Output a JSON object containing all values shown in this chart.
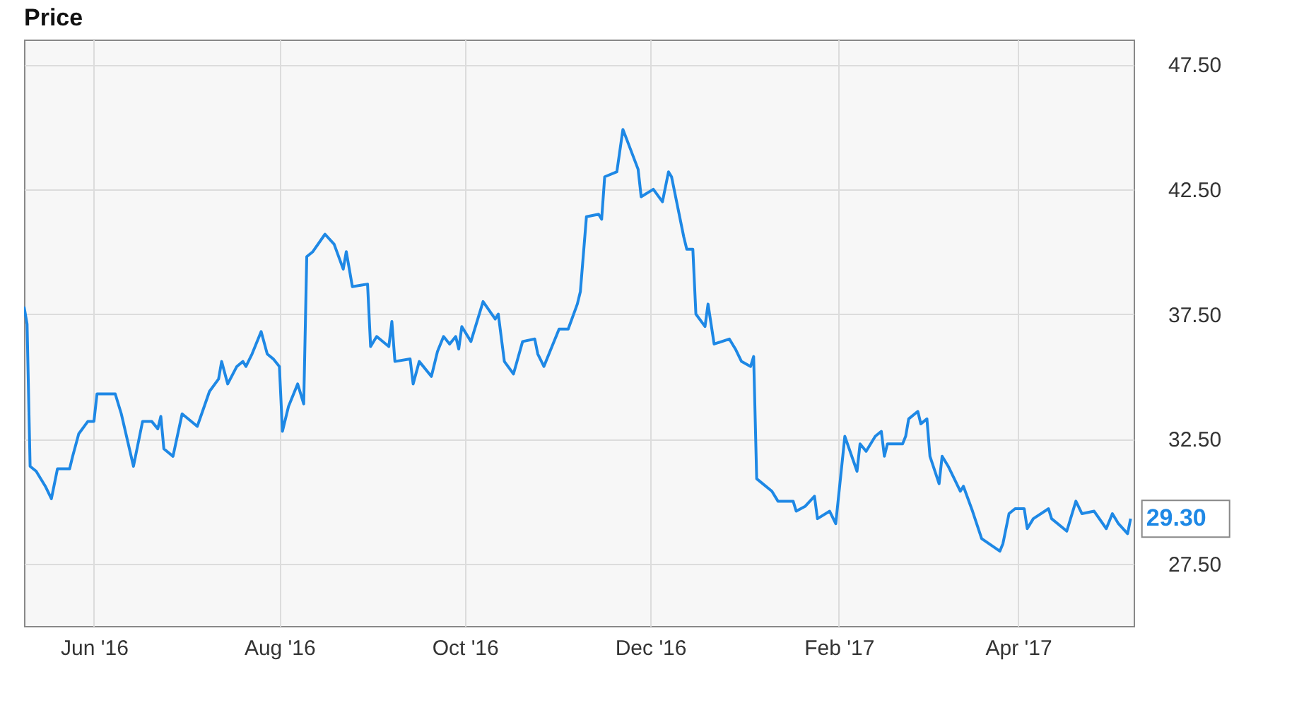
{
  "chart_data": {
    "type": "line",
    "title": "Price",
    "x": [
      "2016-05-09",
      "2016-05-10",
      "2016-05-11",
      "2016-05-13",
      "2016-05-16",
      "2016-05-18",
      "2016-05-20",
      "2016-05-24",
      "2016-05-25",
      "2016-05-27",
      "2016-05-30",
      "2016-06-01",
      "2016-06-02",
      "2016-06-08",
      "2016-06-10",
      "2016-06-14",
      "2016-06-17",
      "2016-06-20",
      "2016-06-22",
      "2016-06-23",
      "2016-06-24",
      "2016-06-27",
      "2016-06-30",
      "2016-07-05",
      "2016-07-07",
      "2016-07-09",
      "2016-07-12",
      "2016-07-13",
      "2016-07-15",
      "2016-07-18",
      "2016-07-20",
      "2016-07-21",
      "2016-07-23",
      "2016-07-26",
      "2016-07-28",
      "2016-07-30",
      "2016-08-01",
      "2016-08-02",
      "2016-08-04",
      "2016-08-07",
      "2016-08-09",
      "2016-08-10",
      "2016-08-12",
      "2016-08-16",
      "2016-08-19",
      "2016-08-22",
      "2016-08-23",
      "2016-08-25",
      "2016-08-30",
      "2016-08-31",
      "2016-09-02",
      "2016-09-06",
      "2016-09-07",
      "2016-09-08",
      "2016-09-13",
      "2016-09-14",
      "2016-09-16",
      "2016-09-20",
      "2016-09-22",
      "2016-09-24",
      "2016-09-26",
      "2016-09-28",
      "2016-09-29",
      "2016-09-30",
      "2016-10-03",
      "2016-10-07",
      "2016-10-11",
      "2016-10-12",
      "2016-10-14",
      "2016-10-17",
      "2016-10-20",
      "2016-10-24",
      "2016-10-25",
      "2016-10-27",
      "2016-11-01",
      "2016-11-04",
      "2016-11-07",
      "2016-11-08",
      "2016-11-10",
      "2016-11-14",
      "2016-11-15",
      "2016-11-16",
      "2016-11-20",
      "2016-11-22",
      "2016-11-27",
      "2016-11-28",
      "2016-12-02",
      "2016-12-05",
      "2016-12-07",
      "2016-12-08",
      "2016-12-12",
      "2016-12-13",
      "2016-12-15",
      "2016-12-16",
      "2016-12-19",
      "2016-12-20",
      "2016-12-22",
      "2016-12-27",
      "2016-12-29",
      "2016-12-31",
      "2017-01-03",
      "2017-01-04",
      "2017-01-05",
      "2017-01-10",
      "2017-01-12",
      "2017-01-17",
      "2017-01-18",
      "2017-01-21",
      "2017-01-24",
      "2017-01-25",
      "2017-01-29",
      "2017-01-31",
      "2017-02-03",
      "2017-02-07",
      "2017-02-08",
      "2017-02-10",
      "2017-02-13",
      "2017-02-15",
      "2017-02-16",
      "2017-02-17",
      "2017-02-22",
      "2017-02-23",
      "2017-02-24",
      "2017-02-27",
      "2017-02-28",
      "2017-03-02",
      "2017-03-03",
      "2017-03-06",
      "2017-03-07",
      "2017-03-09",
      "2017-03-13",
      "2017-03-14",
      "2017-03-17",
      "2017-03-20",
      "2017-03-26",
      "2017-03-27",
      "2017-03-29",
      "2017-03-31",
      "2017-04-03",
      "2017-04-04",
      "2017-04-06",
      "2017-04-11",
      "2017-04-12",
      "2017-04-17",
      "2017-04-20",
      "2017-04-22",
      "2017-04-26",
      "2017-04-30",
      "2017-05-02",
      "2017-05-04",
      "2017-05-07",
      "2017-05-08"
    ],
    "series": [
      {
        "color": "#1e88e5",
        "values": [
          37.8,
          37.1,
          31.4,
          31.2,
          30.6,
          30.1,
          31.3,
          31.3,
          31.8,
          32.7,
          33.2,
          33.2,
          34.3,
          34.3,
          33.5,
          31.4,
          33.2,
          33.2,
          32.9,
          33.4,
          32.1,
          31.8,
          33.5,
          33.0,
          33.7,
          34.4,
          34.9,
          35.6,
          34.7,
          35.4,
          35.6,
          35.4,
          35.9,
          36.8,
          35.9,
          35.7,
          35.4,
          32.8,
          33.8,
          34.7,
          33.9,
          39.8,
          40.0,
          40.7,
          40.3,
          39.3,
          40.0,
          38.6,
          38.7,
          36.2,
          36.6,
          36.2,
          37.2,
          35.6,
          35.7,
          34.7,
          35.6,
          35.0,
          36.0,
          36.6,
          36.3,
          36.6,
          36.1,
          37.0,
          36.4,
          38.0,
          37.3,
          37.5,
          35.6,
          35.1,
          36.4,
          36.5,
          35.9,
          35.4,
          36.9,
          36.9,
          37.9,
          38.4,
          41.4,
          41.5,
          41.3,
          43.0,
          43.2,
          44.9,
          43.3,
          42.2,
          42.5,
          42.0,
          43.2,
          43.0,
          40.6,
          40.1,
          40.1,
          37.5,
          37.0,
          37.9,
          36.3,
          36.5,
          36.1,
          35.6,
          35.4,
          35.8,
          30.9,
          30.4,
          30.0,
          30.0,
          29.6,
          29.8,
          30.2,
          29.3,
          29.6,
          29.1,
          32.6,
          31.2,
          32.3,
          32.0,
          32.6,
          32.8,
          31.8,
          32.3,
          32.3,
          32.6,
          33.3,
          33.6,
          33.1,
          33.3,
          31.8,
          30.7,
          31.8,
          31.4,
          30.4,
          30.6,
          29.6,
          28.5,
          28.0,
          28.3,
          29.5,
          29.7,
          29.7,
          28.9,
          29.3,
          29.7,
          29.3,
          28.8,
          30.0,
          29.5,
          29.6,
          28.9,
          29.5,
          29.1,
          28.7,
          29.3
        ],
        "value_labels": [
          null,
          null,
          null,
          null,
          null,
          null,
          null,
          null,
          null,
          null,
          null,
          null,
          null,
          null,
          null,
          null,
          null,
          null,
          null,
          null,
          null,
          null,
          null,
          null,
          null,
          null,
          null,
          null,
          null,
          null,
          null,
          null,
          null,
          null,
          null,
          null,
          null,
          null,
          null,
          null,
          null,
          null,
          null,
          null,
          null,
          null,
          null,
          null,
          null,
          null,
          null,
          null,
          null,
          null,
          null,
          null,
          null,
          null,
          null,
          null,
          null,
          null,
          null,
          null,
          null,
          null,
          null,
          null,
          null,
          null,
          null,
          null,
          null,
          null,
          null,
          null,
          null,
          null,
          null,
          null,
          null,
          null,
          null,
          null,
          null,
          null,
          null,
          null,
          null,
          null,
          null,
          null,
          null,
          null,
          null,
          null,
          null,
          null,
          null,
          null,
          null,
          null,
          null,
          null,
          null,
          null,
          null,
          null,
          null,
          null,
          null,
          null,
          null,
          null,
          null,
          null,
          null,
          null,
          null,
          null,
          null,
          null,
          null,
          null,
          null,
          null,
          null,
          null,
          null,
          null,
          null,
          null,
          null,
          null,
          null,
          null,
          null,
          null,
          null,
          null,
          null,
          null,
          null,
          null,
          null,
          null,
          null,
          null,
          null,
          null,
          null,
          "29.30"
        ]
      }
    ],
    "xlim": [
      "2016-05-09",
      "2017-05-09"
    ],
    "xticks": [
      {
        "value": "2016-06-01",
        "label": "Jun '16"
      },
      {
        "value": "2016-08-01",
        "label": "Aug '16"
      },
      {
        "value": "2016-10-01",
        "label": "Oct '16"
      },
      {
        "value": "2016-12-01",
        "label": "Dec '16"
      },
      {
        "value": "2017-02-01",
        "label": "Feb '17"
      },
      {
        "value": "2017-04-01",
        "label": "Apr '17"
      }
    ],
    "ylim": [
      25,
      48.5
    ],
    "yticks": [
      {
        "value": 27.5,
        "label": "27.50"
      },
      {
        "value": 32.5,
        "label": "32.50"
      },
      {
        "value": 37.5,
        "label": "37.50"
      },
      {
        "value": 42.5,
        "label": "42.50"
      },
      {
        "value": 47.5,
        "label": "47.50"
      }
    ],
    "grid": true
  }
}
